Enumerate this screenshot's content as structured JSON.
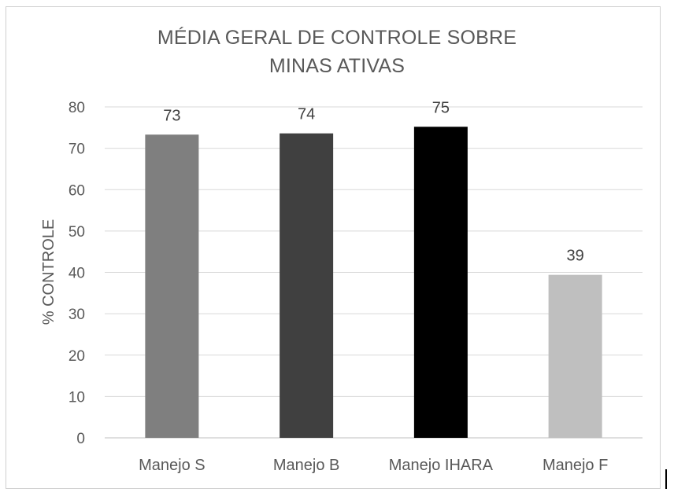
{
  "chart_data": {
    "type": "bar",
    "title_lines": [
      "MÉDIA GERAL DE CONTROLE SOBRE",
      "MINAS ATIVAS"
    ],
    "xlabel": "",
    "ylabel": "% CONTROLE",
    "categories": [
      "Manejo S",
      "Manejo B",
      "Manejo IHARA",
      "Manejo F"
    ],
    "values": [
      73.3,
      73.6,
      75.2,
      39.4
    ],
    "data_labels": [
      "73",
      "74",
      "75",
      "39"
    ],
    "bar_colors": [
      "#7f7f7f",
      "#404040",
      "#000000",
      "#bfbfbf"
    ],
    "ylim": [
      0,
      80
    ],
    "yticks": [
      "0",
      "10",
      "20",
      "30",
      "40",
      "50",
      "60",
      "70",
      "80"
    ],
    "grid": true,
    "legend": "none"
  }
}
